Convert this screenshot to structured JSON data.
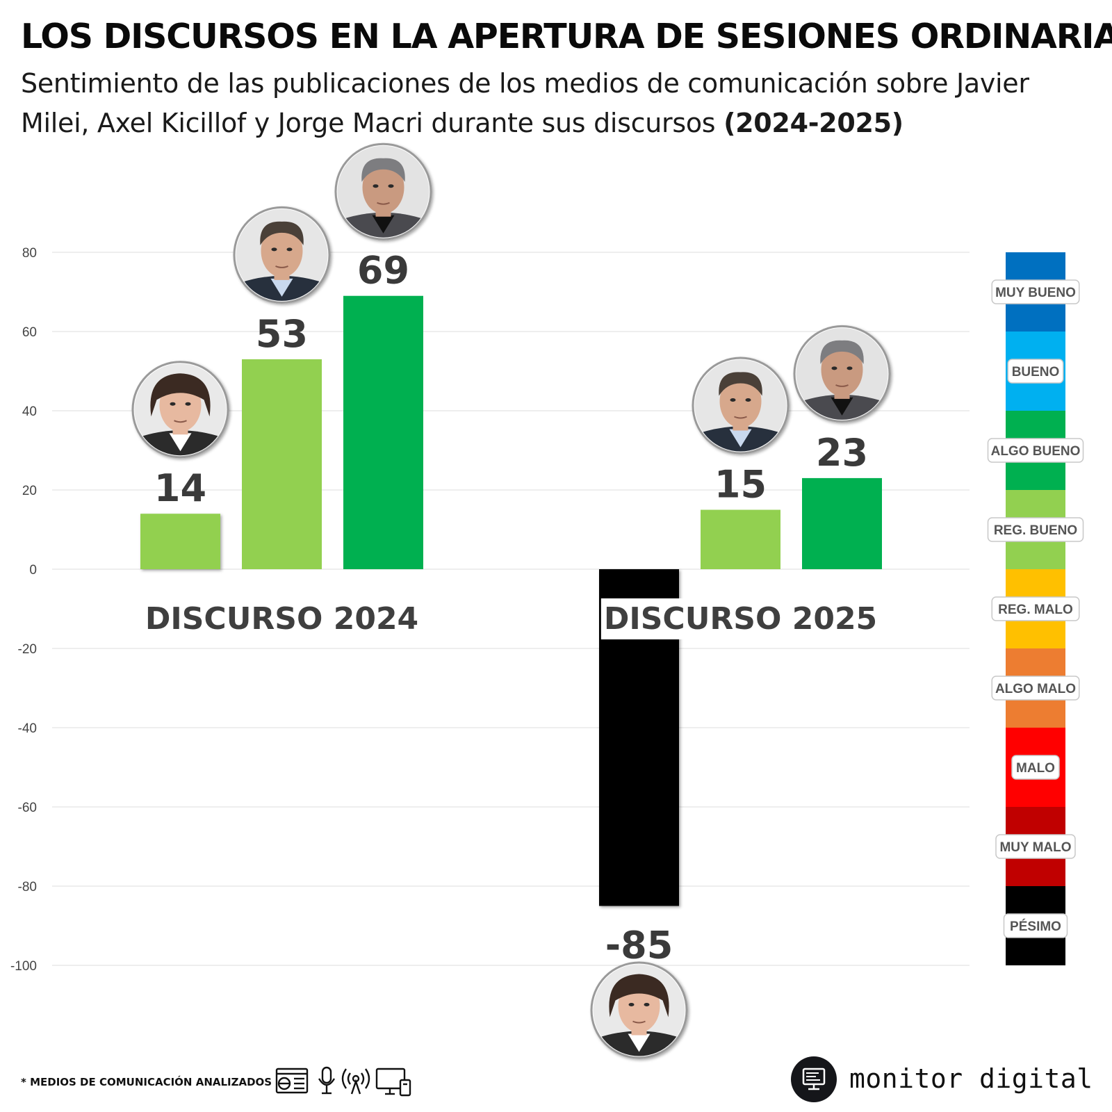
{
  "title": "LOS DISCURSOS EN LA APERTURA DE SESIONES ORDINARIAS",
  "subtitle": "Sentimiento de las publicaciones de los medios de comunicación sobre Javier Milei, Axel Kicillof y Jorge Macri durante sus discursos",
  "subtitle_bold": "(2024-2025)",
  "chart_data": {
    "type": "bar",
    "title": "LOS DISCURSOS EN LA APERTURA DE SESIONES ORDINARIAS",
    "xlabel": "",
    "ylabel": "",
    "ylim": [
      -100,
      80
    ],
    "yticks": [
      80,
      60,
      40,
      20,
      0,
      -20,
      -40,
      -60,
      -80,
      -100
    ],
    "grid": true,
    "legend": "right",
    "groups": [
      {
        "label": "DISCURSO 2024",
        "bars": [
          {
            "person": "Javier Milei",
            "value": 14,
            "label": "14",
            "color": "#92d050"
          },
          {
            "person": "Axel Kicillof",
            "value": 53,
            "label": "53",
            "color": "#92d050"
          },
          {
            "person": "Jorge Macri",
            "value": 69,
            "label": "69",
            "color": "#00b050"
          }
        ]
      },
      {
        "label": "DISCURSO 2025",
        "bars": [
          {
            "person": "Javier Milei",
            "value": -85,
            "label": "-85",
            "color": "#000000"
          },
          {
            "person": "Axel Kicillof",
            "value": 15,
            "label": "15",
            "color": "#92d050"
          },
          {
            "person": "Jorge Macri",
            "value": 23,
            "label": "23",
            "color": "#00b050"
          }
        ]
      }
    ],
    "scale": [
      {
        "label": "MUY BUENO",
        "from": 60,
        "to": 80,
        "color": "#0070c0"
      },
      {
        "label": "BUENO",
        "from": 40,
        "to": 60,
        "color": "#00b0f0"
      },
      {
        "label": "ALGO BUENO",
        "from": 20,
        "to": 40,
        "color": "#00b050"
      },
      {
        "label": "REG. BUENO",
        "from": 0,
        "to": 20,
        "color": "#92d050"
      },
      {
        "label": "REG. MALO",
        "from": -20,
        "to": 0,
        "color": "#ffc000"
      },
      {
        "label": "ALGO MALO",
        "from": -40,
        "to": -20,
        "color": "#ed7d31"
      },
      {
        "label": "MALO",
        "from": -60,
        "to": -40,
        "color": "#ff0000"
      },
      {
        "label": "MUY MALO",
        "from": -80,
        "to": -60,
        "color": "#c00000"
      },
      {
        "label": "PÉSIMO",
        "from": -100,
        "to": -80,
        "color": "#000000"
      }
    ]
  },
  "footer": {
    "note": "* MEDIOS DE COMUNICACIÓN ANALIZADOS",
    "media_icons": [
      "newspaper-web-icon",
      "microphone-icon",
      "radio-antenna-icon",
      "tv-monitor-icon"
    ],
    "brand": "monitor digital",
    "brand_icon": "monitor-logo-icon"
  }
}
